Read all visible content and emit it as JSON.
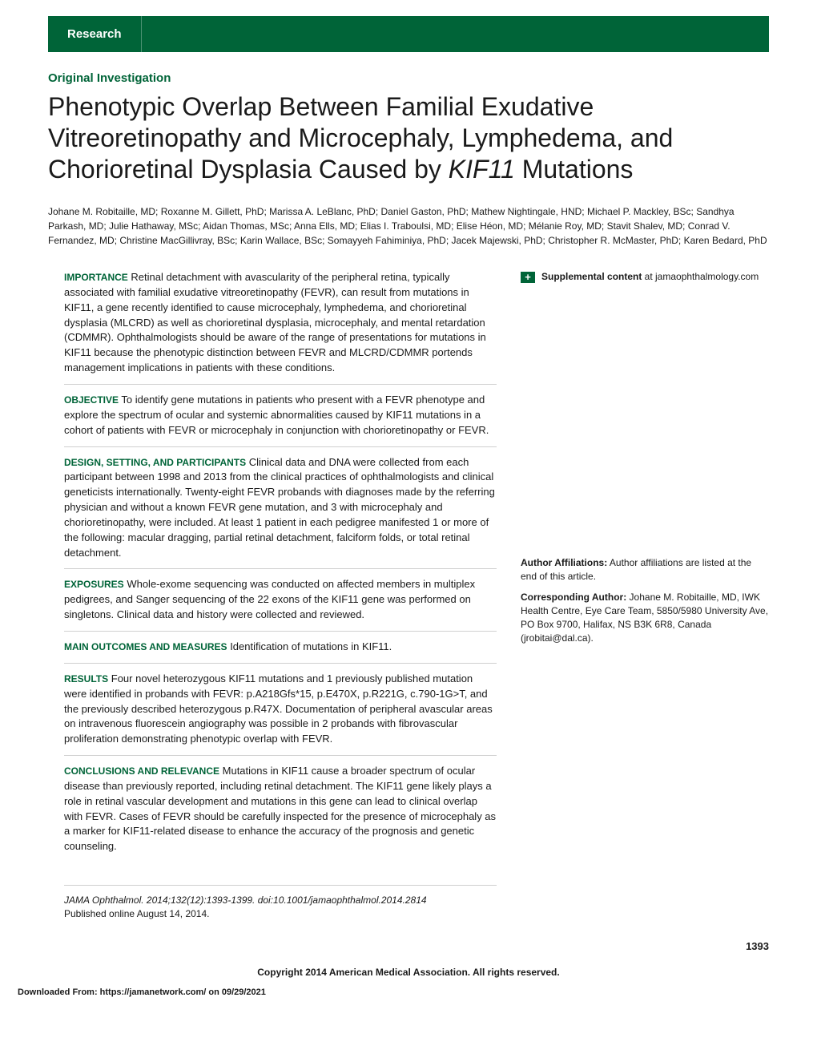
{
  "header": {
    "tab_label": "Research"
  },
  "section_label": "Original Investigation",
  "title_parts": {
    "pre": "Phenotypic Overlap Between Familial Exudative Vitreoretinopathy and Microcephaly, Lymphedema, and Chorioretinal Dysplasia Caused by ",
    "italic": "KIF11",
    "post": " Mutations"
  },
  "authors": "Johane M. Robitaille, MD; Roxanne M. Gillett, PhD; Marissa A. LeBlanc, PhD; Daniel Gaston, PhD; Mathew Nightingale, HND; Michael P. Mackley, BSc; Sandhya Parkash, MD; Julie Hathaway, MSc; Aidan Thomas, MSc; Anna Ells, MD; Elias I. Traboulsi, MD; Elise Héon, MD; Mélanie Roy, MD; Stavit Shalev, MD; Conrad V. Fernandez, MD; Christine MacGillivray, BSc; Karin Wallace, BSc; Somayyeh Fahiminiya, PhD; Jacek Majewski, PhD; Christopher R. McMaster, PhD; Karen Bedard, PhD",
  "abstract": {
    "importance": {
      "label": "IMPORTANCE",
      "text": "Retinal detachment with avascularity of the peripheral retina, typically associated with familial exudative vitreoretinopathy (FEVR), can result from mutations in KIF11, a gene recently identified to cause microcephaly, lymphedema, and chorioretinal dysplasia (MLCRD) as well as chorioretinal dysplasia, microcephaly, and mental retardation (CDMMR). Ophthalmologists should be aware of the range of presentations for mutations in KIF11 because the phenotypic distinction between FEVR and MLCRD/CDMMR portends management implications in patients with these conditions."
    },
    "objective": {
      "label": "OBJECTIVE",
      "text": "To identify gene mutations in patients who present with a FEVR phenotype and explore the spectrum of ocular and systemic abnormalities caused by KIF11 mutations in a cohort of patients with FEVR or microcephaly in conjunction with chorioretinopathy or FEVR."
    },
    "design": {
      "label": "DESIGN, SETTING, AND PARTICIPANTS",
      "text": "Clinical data and DNA were collected from each participant between 1998 and 2013 from the clinical practices of ophthalmologists and clinical geneticists internationally. Twenty-eight FEVR probands with diagnoses made by the referring physician and without a known FEVR gene mutation, and 3 with microcephaly and chorioretinopathy, were included. At least 1 patient in each pedigree manifested 1 or more of the following: macular dragging, partial retinal detachment, falciform folds, or total retinal detachment."
    },
    "exposures": {
      "label": "EXPOSURES",
      "text": "Whole-exome sequencing was conducted on affected members in multiplex pedigrees, and Sanger sequencing of the 22 exons of the KIF11 gene was performed on singletons. Clinical data and history were collected and reviewed."
    },
    "outcomes": {
      "label": "MAIN OUTCOMES AND MEASURES",
      "text": "Identification of mutations in KIF11."
    },
    "results": {
      "label": "RESULTS",
      "text": "Four novel heterozygous KIF11 mutations and 1 previously published mutation were identified in probands with FEVR: p.A218Gfs*15, p.E470X, p.R221G, c.790-1G>T, and the previously described heterozygous p.R47X. Documentation of peripheral avascular areas on intravenous fluorescein angiography was possible in 2 probands with fibrovascular proliferation demonstrating phenotypic overlap with FEVR."
    },
    "conclusions": {
      "label": "CONCLUSIONS AND RELEVANCE",
      "text": "Mutations in KIF11 cause a broader spectrum of ocular disease than previously reported, including retinal detachment. The KIF11 gene likely plays a role in retinal vascular development and mutations in this gene can lead to clinical overlap with FEVR. Cases of FEVR should be carefully inspected for the presence of microcephaly as a marker for KIF11-related disease to enhance the accuracy of the prognosis and genetic counseling."
    }
  },
  "citation": {
    "line1": "JAMA Ophthalmol. 2014;132(12):1393-1399. doi:10.1001/jamaophthalmol.2014.2814",
    "line2": "Published online August 14, 2014."
  },
  "sidebar": {
    "supplemental_label": "Supplemental content",
    "supplemental_at": " at jamaophthalmology.com",
    "affiliations_label": "Author Affiliations:",
    "affiliations_text": " Author affiliations are listed at the end of this article.",
    "corresponding_label": "Corresponding Author:",
    "corresponding_text": " Johane M. Robitaille, MD, IWK Health Centre, Eye Care Team, 5850/5980 University Ave, PO Box 9700, Halifax, NS B3K 6R8, Canada (jrobitai@dal.ca)."
  },
  "page_number": "1393",
  "copyright": "Copyright 2014 American Medical Association. All rights reserved.",
  "download_note": "Downloaded From: https://jamanetwork.com/ on 09/29/2021",
  "colors": {
    "brand_green": "#006438",
    "text": "#1a1a1a",
    "rule": "#d0d0d0",
    "background": "#ffffff"
  },
  "typography": {
    "title_fontsize": 32,
    "section_label_fontsize": 15,
    "body_fontsize": 13,
    "small_fontsize": 12
  }
}
